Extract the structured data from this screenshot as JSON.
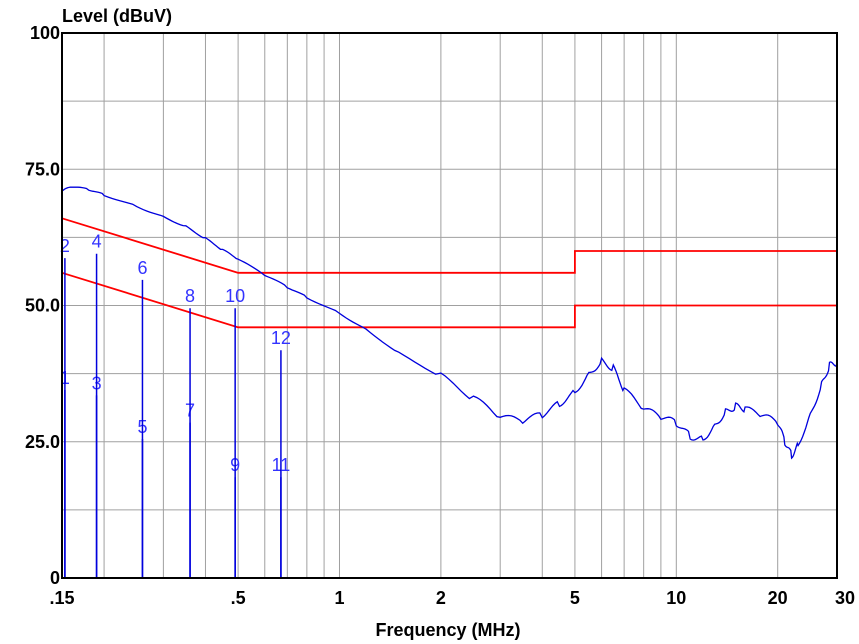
{
  "chart_data": {
    "type": "line",
    "ylabel": "Level (dBuV)",
    "xlabel": "Frequency (MHz)",
    "x_scale": "log",
    "xlim": [
      0.15,
      30
    ],
    "ylim": [
      0,
      100
    ],
    "grid": true,
    "x_ticks": [
      {
        "value": 0.15,
        "label": ".15"
      },
      {
        "value": 0.5,
        "label": ".5"
      },
      {
        "value": 1,
        "label": "1"
      },
      {
        "value": 2,
        "label": "2"
      },
      {
        "value": 5,
        "label": "5"
      },
      {
        "value": 10,
        "label": "10"
      },
      {
        "value": 20,
        "label": "20"
      },
      {
        "value": 30,
        "label": "30"
      }
    ],
    "y_ticks": [
      {
        "value": 0,
        "label": "0"
      },
      {
        "value": 25,
        "label": "25.0"
      },
      {
        "value": 50,
        "label": "50.0"
      },
      {
        "value": 75,
        "label": "75.0"
      },
      {
        "value": 100,
        "label": "100"
      }
    ],
    "colors": {
      "trace": "#0000dd",
      "limits": "#ff0000",
      "markers": "#3333ff",
      "grid": "#a0a0a0"
    },
    "series": [
      {
        "kind": "trace",
        "points": [
          [
            0.15,
            71.0
          ],
          [
            0.16,
            71.8
          ],
          [
            0.18,
            71.3
          ],
          [
            0.2,
            70.3
          ],
          [
            0.25,
            68.2
          ],
          [
            0.3,
            66.3
          ],
          [
            0.35,
            64.5
          ],
          [
            0.4,
            62.3
          ],
          [
            0.45,
            60.2
          ],
          [
            0.5,
            58.5
          ],
          [
            0.6,
            55.6
          ],
          [
            0.7,
            53.4
          ],
          [
            0.8,
            51.5
          ],
          [
            1.0,
            48.6
          ],
          [
            1.2,
            45.6
          ],
          [
            1.5,
            41.3
          ],
          [
            2.0,
            37.0
          ],
          [
            2.5,
            33.0
          ],
          [
            3.0,
            29.5
          ],
          [
            3.5,
            28.8
          ],
          [
            4.0,
            30.0
          ],
          [
            4.5,
            32.0
          ],
          [
            5.0,
            34.2
          ],
          [
            5.5,
            37.5
          ],
          [
            6.0,
            39.8
          ],
          [
            6.5,
            38.5
          ],
          [
            7.0,
            34.5
          ],
          [
            8.0,
            31.0
          ],
          [
            9.0,
            29.5
          ],
          [
            10.0,
            28.5
          ],
          [
            11.0,
            26.0
          ],
          [
            12.0,
            25.5
          ],
          [
            13.0,
            28.0
          ],
          [
            14.0,
            30.5
          ],
          [
            15.0,
            31.5
          ],
          [
            16.0,
            31.0
          ],
          [
            18.0,
            29.8
          ],
          [
            20.0,
            28.5
          ],
          [
            21.0,
            25.0
          ],
          [
            22.0,
            22.5
          ],
          [
            23.0,
            24.5
          ],
          [
            25.0,
            30.0
          ],
          [
            27.0,
            35.5
          ],
          [
            28.5,
            39.0
          ],
          [
            30.0,
            39.5
          ]
        ]
      },
      {
        "kind": "limit",
        "points": [
          [
            0.15,
            66
          ],
          [
            0.5,
            56
          ],
          [
            5,
            56
          ],
          [
            5,
            60
          ],
          [
            30,
            60
          ]
        ]
      },
      {
        "kind": "limit",
        "points": [
          [
            0.15,
            56
          ],
          [
            0.5,
            46
          ],
          [
            5,
            46
          ],
          [
            5,
            50
          ],
          [
            30,
            50
          ]
        ]
      }
    ],
    "markers": [
      {
        "label": "1",
        "x": 0.153,
        "y": 34.5
      },
      {
        "label": "2",
        "x": 0.153,
        "y": 58.7
      },
      {
        "label": "3",
        "x": 0.19,
        "y": 33.5
      },
      {
        "label": "4",
        "x": 0.19,
        "y": 59.5
      },
      {
        "label": "5",
        "x": 0.26,
        "y": 25.5
      },
      {
        "label": "6",
        "x": 0.26,
        "y": 54.7
      },
      {
        "label": "7",
        "x": 0.36,
        "y": 28.5
      },
      {
        "label": "8",
        "x": 0.36,
        "y": 49.5
      },
      {
        "label": "9",
        "x": 0.49,
        "y": 18.5
      },
      {
        "label": "10",
        "x": 0.49,
        "y": 49.5
      },
      {
        "label": "11",
        "x": 0.67,
        "y": 18.5
      },
      {
        "label": "12",
        "x": 0.67,
        "y": 41.8
      }
    ]
  }
}
